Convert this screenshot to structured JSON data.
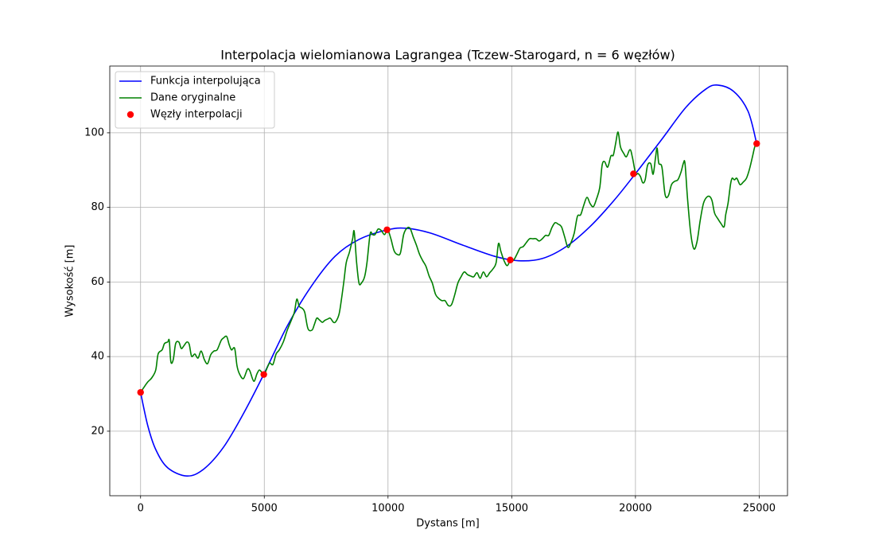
{
  "chart_data": {
    "type": "line",
    "title": "Interpolacja wielomianowa Lagrangea (Tczew-Starogard, n = 6 węzłów)",
    "x_label": "Dystans [m]",
    "y_label": "Wysokość [m]",
    "xlim": [
      -1245,
      26145
    ],
    "ylim": [
      2.7,
      117.9
    ],
    "xticks": [
      0,
      5000,
      10000,
      15000,
      20000,
      25000
    ],
    "yticks": [
      20,
      40,
      60,
      80,
      100
    ],
    "grid": true,
    "legend_loc": "upper left",
    "series": [
      {
        "name": "Funkcja interpolująca",
        "type": "line",
        "color": "#0000ff",
        "x": [
          0,
          290,
          612,
          1095,
          1869,
          2545,
          3350,
          4156,
          4990,
          5928,
          6894,
          7860,
          8827,
          9987,
          10760,
          11727,
          13015,
          14304,
          15271,
          16237,
          17203,
          18170,
          19137,
          20006,
          21070,
          22036,
          22841,
          23325,
          23969,
          24549,
          24900
        ],
        "values": [
          30.4,
          21.5,
          15.1,
          10.2,
          8.0,
          9.8,
          15.7,
          24.7,
          35.4,
          48.2,
          58.8,
          66.9,
          71.4,
          74.0,
          74.4,
          73.1,
          69.9,
          66.9,
          65.7,
          66.3,
          69.5,
          74.9,
          81.9,
          89.1,
          98.3,
          106.8,
          111.7,
          112.8,
          111.1,
          105.8,
          97.1
        ]
      },
      {
        "name": "Dane oryginalne",
        "type": "line",
        "color": "#008000",
        "x": [
          0,
          129,
          290,
          451,
          612,
          709,
          870,
          966,
          1095,
          1160,
          1224,
          1321,
          1418,
          1546,
          1643,
          1740,
          1869,
          1965,
          2062,
          2191,
          2320,
          2448,
          2577,
          2706,
          2835,
          2964,
          3093,
          3254,
          3351,
          3479,
          3576,
          3673,
          3802,
          3898,
          3995,
          4156,
          4317,
          4414,
          4575,
          4704,
          4800,
          4897,
          4994,
          5122,
          5219,
          5348,
          5477,
          5606,
          5767,
          5928,
          6089,
          6218,
          6314,
          6411,
          6540,
          6637,
          6765,
          6927,
          7023,
          7120,
          7217,
          7345,
          7442,
          7571,
          7668,
          7796,
          7893,
          8022,
          8119,
          8215,
          8312,
          8441,
          8570,
          8634,
          8731,
          8827,
          8924,
          9053,
          9150,
          9278,
          9375,
          9472,
          9601,
          9729,
          9858,
          9987,
          10116,
          10245,
          10374,
          10502,
          10631,
          10760,
          10889,
          11018,
          11147,
          11276,
          11404,
          11533,
          11662,
          11791,
          11920,
          12049,
          12178,
          12306,
          12435,
          12564,
          12693,
          12822,
          12951,
          13080,
          13209,
          13338,
          13466,
          13595,
          13724,
          13853,
          13982,
          14111,
          14240,
          14369,
          14465,
          14562,
          14691,
          14820,
          14949,
          15077,
          15206,
          15335,
          15464,
          15593,
          15722,
          15851,
          15980,
          16108,
          16237,
          16366,
          16495,
          16624,
          16753,
          16881,
          17010,
          17139,
          17268,
          17397,
          17526,
          17655,
          17784,
          17912,
          18041,
          18170,
          18299,
          18428,
          18557,
          18653,
          18750,
          18879,
          19008,
          19105,
          19201,
          19298,
          19395,
          19524,
          19635,
          19781,
          19878,
          20006,
          20103,
          20200,
          20296,
          20393,
          20490,
          20619,
          20715,
          20812,
          20877,
          20941,
          21070,
          21199,
          21328,
          21457,
          21586,
          21714,
          21843,
          21940,
          22004,
          22101,
          22230,
          22359,
          22488,
          22617,
          22745,
          22874,
          23003,
          23099,
          23196,
          23325,
          23454,
          23583,
          23647,
          23744,
          23840,
          23905,
          24001,
          24098,
          24227,
          24356,
          24485,
          24614,
          24743,
          24820,
          24900
        ],
        "values": [
          30.4,
          31.7,
          33.2,
          34.3,
          36.4,
          40.7,
          41.8,
          43.5,
          43.9,
          44.3,
          38.6,
          39.2,
          43.5,
          43.9,
          42.2,
          42.8,
          43.9,
          43.3,
          40.1,
          40.7,
          39.6,
          41.5,
          39.2,
          38.1,
          40.5,
          41.5,
          41.8,
          44.3,
          45.0,
          45.4,
          43.3,
          41.8,
          42.2,
          37.5,
          35.4,
          34.1,
          36.6,
          36.2,
          33.4,
          35.4,
          36.4,
          35.8,
          35.2,
          37.1,
          38.3,
          37.9,
          40.7,
          41.8,
          43.9,
          47.1,
          49.7,
          52.0,
          55.4,
          53.5,
          52.9,
          51.8,
          47.5,
          47.1,
          48.6,
          50.3,
          49.9,
          49.2,
          49.7,
          50.1,
          50.3,
          49.2,
          49.4,
          51.4,
          55.4,
          60.1,
          65.2,
          68.0,
          71.6,
          73.5,
          65.2,
          59.7,
          59.7,
          61.4,
          65.2,
          72.9,
          72.7,
          72.7,
          74.2,
          73.8,
          72.7,
          74.0,
          71.6,
          68.4,
          67.4,
          67.8,
          72.7,
          74.4,
          74.4,
          72.1,
          69.9,
          67.4,
          65.7,
          64.2,
          61.6,
          59.7,
          56.7,
          55.6,
          55.0,
          55.0,
          53.7,
          53.9,
          56.5,
          59.7,
          61.4,
          62.7,
          62.0,
          61.6,
          61.4,
          62.5,
          61.0,
          62.7,
          61.4,
          62.5,
          63.5,
          65.2,
          70.3,
          68.2,
          65.7,
          64.4,
          65.9,
          65.9,
          67.4,
          69.1,
          69.5,
          70.6,
          71.6,
          71.6,
          71.6,
          71.0,
          71.6,
          72.5,
          72.5,
          74.6,
          75.9,
          75.5,
          74.8,
          72.1,
          69.3,
          70.6,
          73.1,
          77.6,
          78.0,
          80.6,
          82.7,
          81.0,
          80.2,
          82.3,
          85.3,
          91.3,
          92.3,
          90.8,
          93.8,
          94.0,
          97.2,
          100.2,
          96.2,
          94.5,
          93.6,
          95.5,
          93.4,
          89.1,
          89.1,
          88.3,
          86.6,
          87.4,
          91.3,
          91.7,
          88.9,
          93.4,
          95.9,
          91.9,
          90.8,
          83.4,
          83.1,
          86.1,
          87.0,
          87.4,
          89.5,
          91.9,
          91.7,
          82.7,
          73.3,
          68.9,
          70.8,
          76.5,
          81.0,
          82.7,
          82.9,
          81.7,
          78.5,
          77.0,
          75.7,
          74.8,
          78.0,
          81.2,
          86.1,
          87.8,
          87.4,
          87.8,
          86.1,
          86.8,
          87.8,
          90.4,
          94.0,
          96.2,
          97.1
        ]
      },
      {
        "name": "Węzły interpolacji",
        "type": "scatter",
        "color": "#ff0000",
        "x": [
          0,
          4980,
          9960,
          14940,
          19920,
          24900
        ],
        "values": [
          30.4,
          35.2,
          74.0,
          65.9,
          89.0,
          97.1
        ]
      }
    ]
  }
}
